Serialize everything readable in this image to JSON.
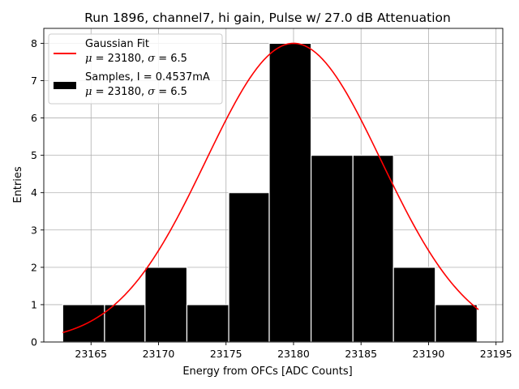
{
  "chart_data": {
    "type": "histogram",
    "title": "Run 1896, channel7, hi gain, Pulse w/ 27.0 dB Attenuation",
    "xlabel": "Energy from OFCs [ADC Counts]",
    "ylabel": "Entries",
    "xlim": [
      23161.5,
      23195.5
    ],
    "ylim": [
      0,
      8.4
    ],
    "x_ticks": [
      23165,
      23170,
      23175,
      23180,
      23185,
      23190,
      23195
    ],
    "y_ticks": [
      0,
      1,
      2,
      3,
      4,
      5,
      6,
      7,
      8
    ],
    "grid": true,
    "legend_position": "top-left",
    "bins": [
      {
        "start": 23162.9,
        "end": 23166.0,
        "count": 1
      },
      {
        "start": 23166.0,
        "end": 23169.0,
        "count": 1
      },
      {
        "start": 23169.0,
        "end": 23172.1,
        "count": 2
      },
      {
        "start": 23172.1,
        "end": 23175.2,
        "count": 1
      },
      {
        "start": 23175.2,
        "end": 23178.2,
        "count": 4
      },
      {
        "start": 23178.2,
        "end": 23181.3,
        "count": 8
      },
      {
        "start": 23181.3,
        "end": 23184.4,
        "count": 5
      },
      {
        "start": 23184.4,
        "end": 23187.4,
        "count": 5
      },
      {
        "start": 23187.4,
        "end": 23190.5,
        "count": 2
      },
      {
        "start": 23190.5,
        "end": 23193.6,
        "count": 1
      }
    ],
    "fit": {
      "mean": 23180,
      "sigma": 6.5,
      "amplitude": 8.0,
      "x_range": [
        23162.9,
        23193.7
      ]
    },
    "legend": [
      {
        "kind": "line",
        "color": "#ff0000",
        "line1": "Gaussian Fit",
        "line2_mu": "μ",
        "line2_rest_a": " = 23180, ",
        "line2_sigma": "σ",
        "line2_rest_b": " = 6.5"
      },
      {
        "kind": "patch",
        "color": "#000000",
        "line1": "Samples, I = 0.4537mA",
        "line2_mu": "μ",
        "line2_rest_a": " = 23180, ",
        "line2_sigma": "σ",
        "line2_rest_b": " = 6.5"
      }
    ],
    "colors": {
      "bars": "#000000",
      "bar_edge": "#ffffff",
      "fit_line": "#ff0000",
      "grid": "#b0b0b0"
    }
  }
}
